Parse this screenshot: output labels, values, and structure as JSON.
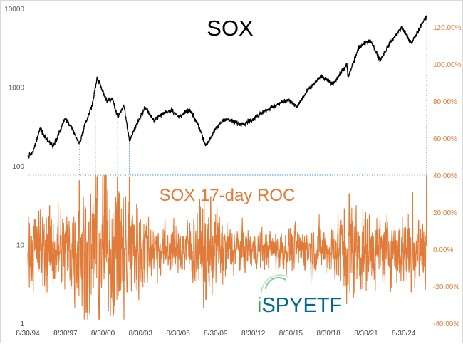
{
  "chart_data": {
    "type": "line",
    "title": "SOX",
    "roc_label": "SOX 17-day ROC",
    "x_ticks": [
      "8/30/94",
      "8/30/97",
      "8/30/00",
      "8/30/03",
      "8/30/06",
      "8/30/09",
      "8/30/12",
      "8/30/15",
      "8/30/18",
      "8/30/21",
      "8/30/24"
    ],
    "x_range": [
      "8/30/94",
      "6/30/26"
    ],
    "left_axis": {
      "scale": "log",
      "ticks": [
        "10000",
        "1000",
        "100",
        "10",
        "1"
      ],
      "ylim": [
        1,
        10000
      ]
    },
    "right_axis": {
      "ticks": [
        "120.00%",
        "100.00%",
        "80.00%",
        "60.00%",
        "40.00%",
        "20.00%",
        "0.00%",
        "-20.00%",
        "-40.00%"
      ],
      "ylim": [
        -40,
        130
      ],
      "unit": "%"
    },
    "reference_line": {
      "axis": "right",
      "value": 40
    },
    "series": [
      {
        "name": "SOX",
        "axis": "left",
        "color": "#000000",
        "points": [
          [
            "8/30/94",
            130
          ],
          [
            "1/30/95",
            150
          ],
          [
            "8/30/95",
            300
          ],
          [
            "2/28/96",
            220
          ],
          [
            "8/30/96",
            180
          ],
          [
            "3/30/97",
            280
          ],
          [
            "8/30/97",
            410
          ],
          [
            "2/28/98",
            300
          ],
          [
            "10/15/98",
            190
          ],
          [
            "3/30/99",
            340
          ],
          [
            "10/30/99",
            620
          ],
          [
            "3/10/00",
            1330
          ],
          [
            "6/30/00",
            1000
          ],
          [
            "12/30/00",
            660
          ],
          [
            "5/30/01",
            720
          ],
          [
            "10/30/01",
            420
          ],
          [
            "4/30/02",
            580
          ],
          [
            "10/10/02",
            210
          ],
          [
            "6/30/03",
            380
          ],
          [
            "1/20/04",
            560
          ],
          [
            "8/30/04",
            380
          ],
          [
            "5/30/05",
            460
          ],
          [
            "2/28/06",
            520
          ],
          [
            "8/30/06",
            420
          ],
          [
            "7/30/07",
            510
          ],
          [
            "3/30/08",
            340
          ],
          [
            "11/20/08",
            180
          ],
          [
            "6/30/09",
            270
          ],
          [
            "4/30/10",
            400
          ],
          [
            "8/30/11",
            340
          ],
          [
            "8/30/12",
            390
          ],
          [
            "4/30/13",
            480
          ],
          [
            "11/30/14",
            640
          ],
          [
            "6/30/15",
            700
          ],
          [
            "2/10/16",
            560
          ],
          [
            "12/30/16",
            900
          ],
          [
            "1/30/18",
            1380
          ],
          [
            "12/24/18",
            1090
          ],
          [
            "2/20/20",
            1950
          ],
          [
            "3/18/20",
            1320
          ],
          [
            "1/30/21",
            3200
          ],
          [
            "12/27/21",
            4000
          ],
          [
            "10/14/22",
            2200
          ],
          [
            "7/30/23",
            3700
          ],
          [
            "7/10/24",
            5800
          ],
          [
            "4/8/25",
            3600
          ],
          [
            "6/30/26",
            8200
          ]
        ]
      },
      {
        "name": "SOX 17-day ROC",
        "axis": "right",
        "color": "#e07b39",
        "amplitude_by_year": [
          [
            "8/30/94",
            18
          ],
          [
            "8/30/97",
            22
          ],
          [
            "3/10/00",
            35
          ],
          [
            "10/10/02",
            30
          ],
          [
            "8/30/04",
            14
          ],
          [
            "8/30/06",
            11
          ],
          [
            "11/20/08",
            24
          ],
          [
            "8/30/10",
            14
          ],
          [
            "8/30/12",
            9
          ],
          [
            "8/30/15",
            10
          ],
          [
            "12/24/18",
            13
          ],
          [
            "3/18/20",
            25
          ],
          [
            "10/14/22",
            16
          ],
          [
            "7/10/24",
            17
          ],
          [
            "6/30/26",
            20
          ]
        ],
        "spikes": [
          [
            "10/15/98",
            37
          ],
          [
            "1/20/00",
            40
          ],
          [
            "3/10/00",
            39
          ],
          [
            "4/20/00",
            -30
          ],
          [
            "11/30/00",
            40
          ],
          [
            "1/30/01",
            -33
          ],
          [
            "10/30/01",
            39
          ],
          [
            "7/30/02",
            -23
          ],
          [
            "10/10/02",
            39
          ],
          [
            "11/20/08",
            -27
          ],
          [
            "3/18/20",
            -19
          ],
          [
            "4/28/20",
            30
          ],
          [
            "4/8/25",
            -23
          ],
          [
            "5/12/25",
            31
          ],
          [
            "6/30/26",
            40
          ]
        ]
      }
    ],
    "drop_lines": [
      "10/15/98",
      "1/20/00",
      "10/30/01",
      "10/10/02",
      "6/30/26"
    ]
  },
  "watermark": {
    "text": "iSPYETF",
    "colors": {
      "i": "#33a854",
      "spy": "#00698c",
      "etf": "#00698c"
    }
  }
}
